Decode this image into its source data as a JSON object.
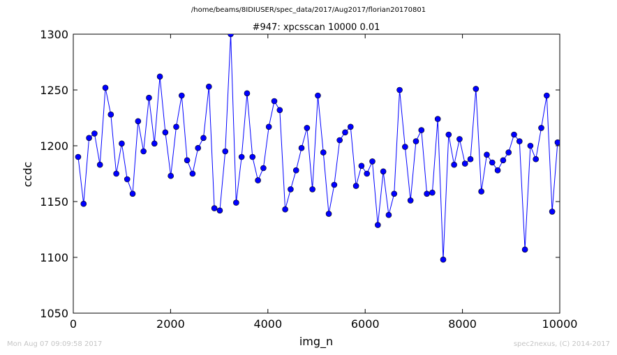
{
  "suptitle": "/home/beams/8IDIUSER/spec_data/2017/Aug2017/florian20170801",
  "footer": {
    "timestamp": "Mon Aug 07 09:09:58 2017",
    "credit": "spec2nexus, (C) 2014-2017"
  },
  "chart_data": {
    "type": "line",
    "title": "#947: xpcsscan 10000 0.01",
    "xlabel": "img_n",
    "ylabel": "ccdc",
    "xlim": [
      0,
      10000
    ],
    "ylim": [
      1050,
      1300
    ],
    "xticks": [
      0,
      2000,
      4000,
      6000,
      8000,
      10000
    ],
    "yticks": [
      1050,
      1100,
      1150,
      1200,
      1250,
      1300
    ],
    "grid": false,
    "line_color": "#0000ff",
    "marker_color": "#0000ff",
    "x": [
      100,
      212,
      324,
      436,
      548,
      660,
      772,
      884,
      996,
      1108,
      1220,
      1332,
      1444,
      1556,
      1668,
      1780,
      1892,
      2004,
      2116,
      2228,
      2340,
      2452,
      2564,
      2676,
      2788,
      2900,
      3012,
      3124,
      3236,
      3348,
      3460,
      3572,
      3684,
      3796,
      3908,
      4020,
      4132,
      4244,
      4356,
      4468,
      4580,
      4692,
      4804,
      4916,
      5028,
      5140,
      5252,
      5364,
      5476,
      5588,
      5700,
      5812,
      5924,
      6036,
      6148,
      6260,
      6372,
      6484,
      6596,
      6708,
      6820,
      6932,
      7044,
      7156,
      7268,
      7380,
      7492,
      7604,
      7716,
      7828,
      7940,
      8052,
      8164,
      8276,
      8388,
      8500,
      8612,
      8724,
      8836,
      8948,
      9060,
      9172,
      9284,
      9396,
      9508,
      9620,
      9732,
      9844,
      9956
    ],
    "y": [
      1190,
      1148,
      1207,
      1211,
      1183,
      1252,
      1228,
      1175,
      1202,
      1170,
      1157,
      1222,
      1195,
      1243,
      1202,
      1262,
      1212,
      1173,
      1217,
      1245,
      1187,
      1175,
      1198,
      1207,
      1253,
      1144,
      1142,
      1195,
      1300,
      1149,
      1190,
      1247,
      1190,
      1169,
      1180,
      1217,
      1240,
      1232,
      1143,
      1161,
      1178,
      1198,
      1216,
      1161,
      1245,
      1194,
      1139,
      1165,
      1205,
      1212,
      1217,
      1164,
      1182,
      1175,
      1186,
      1129,
      1177,
      1138,
      1157,
      1250,
      1199,
      1151,
      1204,
      1214,
      1157,
      1158,
      1224,
      1098,
      1210,
      1183,
      1206,
      1184,
      1188,
      1251,
      1159,
      1192,
      1185,
      1178,
      1187,
      1194,
      1210,
      1204,
      1107,
      1200,
      1188,
      1216,
      1245,
      1141,
      1203
    ]
  }
}
